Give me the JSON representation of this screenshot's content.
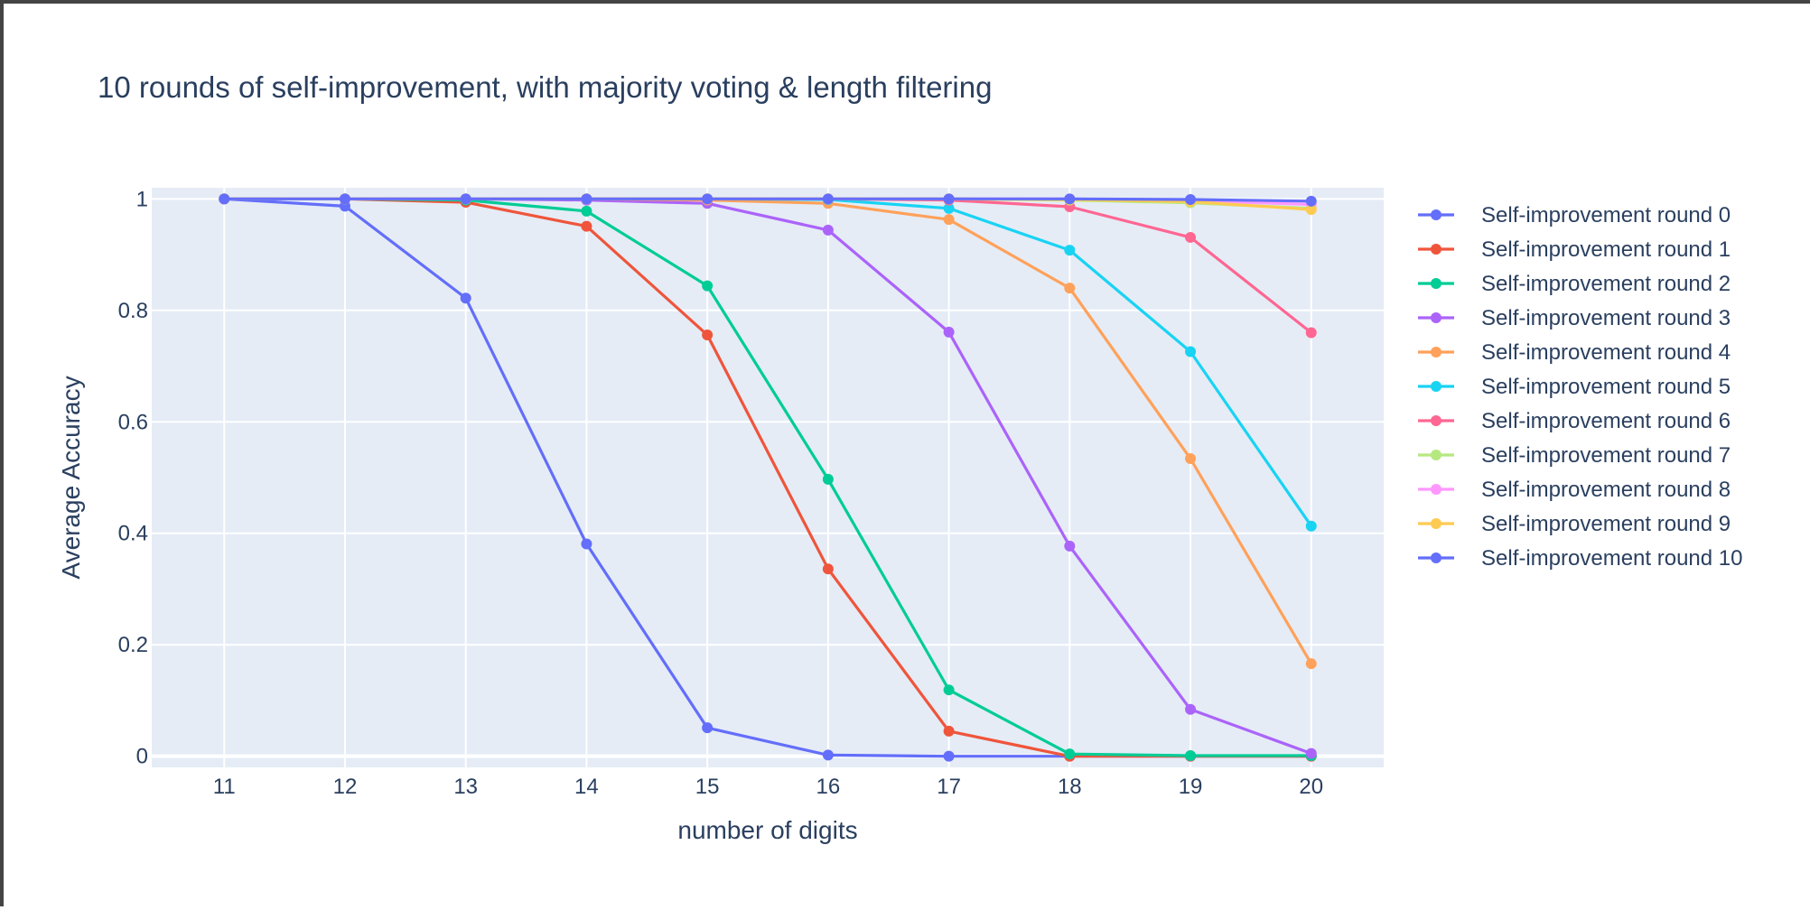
{
  "chart_data": {
    "type": "line",
    "title": "10 rounds of self-improvement, with majority voting & length filtering",
    "xlabel": "number of digits",
    "ylabel": "Average Accuracy",
    "x": [
      11,
      12,
      13,
      14,
      15,
      16,
      17,
      18,
      19,
      20
    ],
    "xlim": [
      10.4,
      20.6
    ],
    "ylim": [
      -0.02,
      1.02
    ],
    "yticks": [
      0,
      0.2,
      0.4,
      0.6,
      0.8,
      1
    ],
    "ytick_labels": [
      "0",
      "0.2",
      "0.4",
      "0.6",
      "0.8",
      "1"
    ],
    "grid": true,
    "legend_position": "right",
    "plot_background": "#e5ecf6",
    "series": [
      {
        "name": "Self-improvement round 0",
        "color": "#636efa",
        "values": [
          1.0,
          0.987,
          0.822,
          0.381,
          0.051,
          0.002,
          0.0,
          0.0,
          0.0,
          0.0
        ]
      },
      {
        "name": "Self-improvement round 1",
        "color": "#ef553b",
        "values": [
          1.0,
          1.0,
          0.994,
          0.951,
          0.756,
          0.336,
          0.045,
          0.0,
          0.0,
          0.0
        ]
      },
      {
        "name": "Self-improvement round 2",
        "color": "#00cc96",
        "values": [
          1.0,
          1.0,
          0.998,
          0.978,
          0.844,
          0.497,
          0.119,
          0.004,
          0.001,
          0.001
        ]
      },
      {
        "name": "Self-improvement round 3",
        "color": "#ab63fa",
        "values": [
          1.0,
          1.0,
          1.0,
          0.998,
          0.992,
          0.944,
          0.761,
          0.377,
          0.084,
          0.005
        ]
      },
      {
        "name": "Self-improvement round 4",
        "color": "#ffa15a",
        "values": [
          1.0,
          1.0,
          1.0,
          1.0,
          0.998,
          0.992,
          0.963,
          0.84,
          0.534,
          0.166
        ]
      },
      {
        "name": "Self-improvement round 5",
        "color": "#19d3f3",
        "values": [
          1.0,
          1.0,
          1.0,
          1.0,
          1.0,
          0.999,
          0.983,
          0.908,
          0.726,
          0.413
        ]
      },
      {
        "name": "Self-improvement round 6",
        "color": "#ff6692",
        "values": [
          1.0,
          1.0,
          1.0,
          1.0,
          1.0,
          1.0,
          0.998,
          0.986,
          0.931,
          0.76
        ]
      },
      {
        "name": "Self-improvement round 7",
        "color": "#b6e880",
        "values": [
          1.0,
          1.0,
          1.0,
          1.0,
          1.0,
          1.0,
          1.0,
          0.998,
          0.993,
          0.983
        ]
      },
      {
        "name": "Self-improvement round 8",
        "color": "#ff97ff",
        "values": [
          1.0,
          1.0,
          1.0,
          1.0,
          1.0,
          1.0,
          1.0,
          1.0,
          0.997,
          0.99
        ]
      },
      {
        "name": "Self-improvement round 9",
        "color": "#fecb52",
        "values": [
          1.0,
          1.0,
          1.0,
          1.0,
          1.0,
          1.0,
          1.0,
          0.999,
          0.995,
          0.981
        ]
      },
      {
        "name": "Self-improvement round 10",
        "color": "#636efa",
        "values": [
          1.0,
          1.0,
          1.0,
          1.0,
          1.0,
          1.0,
          1.0,
          1.0,
          0.999,
          0.996
        ]
      }
    ]
  }
}
